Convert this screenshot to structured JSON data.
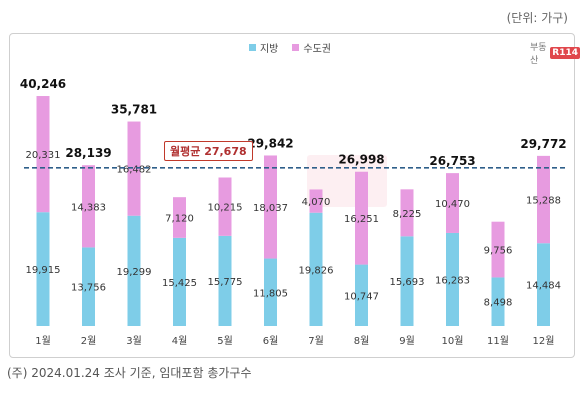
{
  "unit_label": "(단위: 가구)",
  "footnote": "(주) 2024.01.24 조사 기준, 임대포함 총가구수",
  "logo": {
    "text": "부동산",
    "mark": "R114"
  },
  "average_label": "월평균 27,678",
  "colors": {
    "jibang": "#7ecde8",
    "sudogwon": "#e79be0",
    "avg_line": "#2f5f8a"
  },
  "chart_data": {
    "type": "bar",
    "stacked": true,
    "categories": [
      "1월",
      "2월",
      "3월",
      "4월",
      "5월",
      "6월",
      "7월",
      "8월",
      "9월",
      "10월",
      "11월",
      "12월"
    ],
    "series": [
      {
        "name": "지방",
        "values": [
          19915,
          13756,
          19299,
          15425,
          15775,
          11805,
          19826,
          10747,
          15693,
          16283,
          8498,
          14484
        ],
        "labels": [
          "19,915",
          "13,756",
          "19,299",
          "15,425",
          "15,775",
          "11,805",
          "19,826",
          "10,747",
          "15,693",
          "16,283",
          "8,498",
          "14,484"
        ]
      },
      {
        "name": "수도권",
        "values": [
          20331,
          14383,
          16482,
          7120,
          10215,
          18037,
          4070,
          16251,
          8225,
          10470,
          9756,
          15288
        ],
        "labels": [
          "20,331",
          "14,383",
          "16,482",
          "7,120",
          "10,215",
          "18,037",
          "4,070",
          "16,251",
          "8,225",
          "10,470",
          "9,756",
          "15,288"
        ]
      }
    ],
    "total_labels": [
      "40,246",
      "28,139",
      "35,781",
      "",
      "",
      "29,842",
      "",
      "26,998",
      "",
      "26,753",
      "",
      "29,772"
    ],
    "average": 27678,
    "ylim": [
      0,
      42000
    ],
    "legend": "top-center"
  }
}
